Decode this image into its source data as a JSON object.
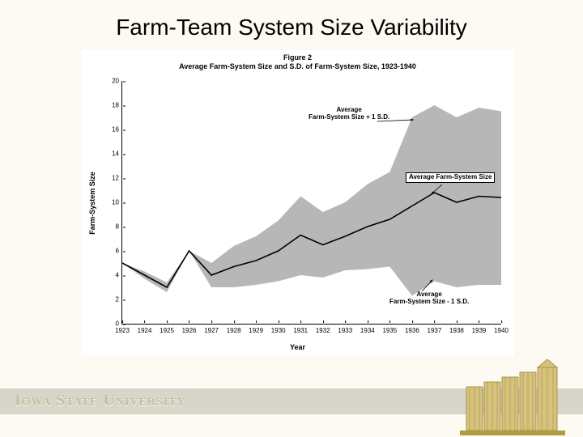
{
  "title": "Farm-Team System Size Variability",
  "figure": {
    "caption_line1": "Figure 2",
    "caption_line2": "Average Farm-System Size and S.D. of Farm-System Size, 1923-1940",
    "ylabel": "Farm-System Size",
    "xlabel": "Year",
    "ylim": [
      0,
      20
    ],
    "yticks": [
      0,
      2,
      4,
      6,
      8,
      10,
      12,
      14,
      16,
      18,
      20
    ],
    "xlim": [
      1923,
      1940
    ],
    "xticks": [
      1923,
      1924,
      1925,
      1926,
      1927,
      1928,
      1929,
      1930,
      1931,
      1932,
      1933,
      1934,
      1935,
      1936,
      1937,
      1938,
      1939,
      1940
    ],
    "band_color": "#b7b7b7",
    "line_color": "#000000",
    "background_color": "#ffffff",
    "annotations": {
      "upper": "Average\nFarm-System Size + 1 S.D.",
      "mean": "Average Farm-System Size",
      "lower": "Average\nFarm-System Size - 1 S.D."
    },
    "series": {
      "years": [
        1923,
        1924,
        1925,
        1926,
        1927,
        1928,
        1929,
        1930,
        1931,
        1932,
        1933,
        1934,
        1935,
        1936,
        1937,
        1938,
        1939,
        1940
      ],
      "upper": [
        5.0,
        4.3,
        3.4,
        6.0,
        5.0,
        6.4,
        7.2,
        8.5,
        10.5,
        9.2,
        10.0,
        11.5,
        12.5,
        17.0,
        18.0,
        17.0,
        17.8,
        17.5
      ],
      "mean": [
        5.0,
        4.0,
        3.0,
        6.0,
        4.0,
        4.7,
        5.2,
        6.0,
        7.3,
        6.5,
        7.2,
        8.0,
        8.6,
        9.7,
        10.8,
        10.0,
        10.5,
        10.4
      ],
      "lower": [
        5.0,
        3.7,
        2.6,
        6.0,
        3.0,
        3.0,
        3.2,
        3.5,
        4.0,
        3.8,
        4.4,
        4.5,
        4.7,
        2.3,
        3.5,
        3.0,
        3.2,
        3.2
      ]
    }
  },
  "footer": {
    "university": "Iowa State University",
    "logo_colors": {
      "fill": "#d6c27a",
      "outline": "#a89454",
      "ground": "#b59b3e"
    }
  }
}
